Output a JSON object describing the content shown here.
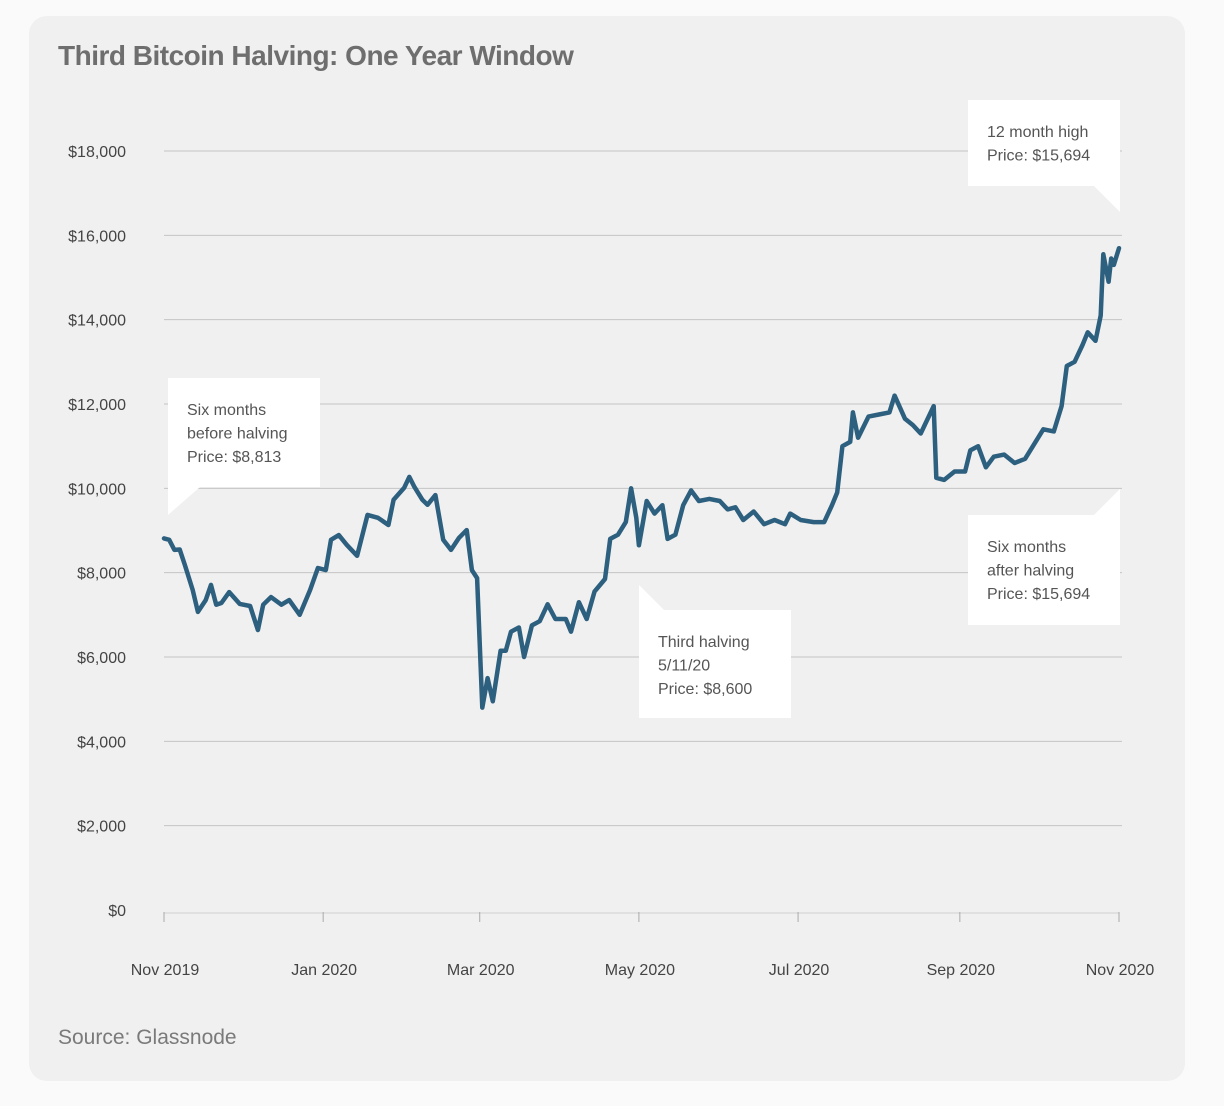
{
  "chart_data": {
    "type": "line",
    "title": "Third Bitcoin Halving: One Year Window",
    "source": "Source: Glassnode",
    "xlabel": "",
    "ylabel": "",
    "ylim": [
      0,
      18000
    ],
    "xlim": [
      "2019-11-01",
      "2020-11-01"
    ],
    "grid": true,
    "line_color": "#2d5f7f",
    "y_ticks": [
      {
        "value": 0,
        "label": "$0"
      },
      {
        "value": 2000,
        "label": "$2,000"
      },
      {
        "value": 4000,
        "label": "$4,000"
      },
      {
        "value": 6000,
        "label": "$6,000"
      },
      {
        "value": 8000,
        "label": "$8,000"
      },
      {
        "value": 10000,
        "label": "$10,000"
      },
      {
        "value": 12000,
        "label": "$12,000"
      },
      {
        "value": 14000,
        "label": "$14,000"
      },
      {
        "value": 16000,
        "label": "$16,000"
      },
      {
        "value": 18000,
        "label": "$18,000"
      }
    ],
    "x_ticks": [
      {
        "value": "2019-11-01",
        "label": "Nov 2019"
      },
      {
        "value": "2020-01-01",
        "label": "Jan 2020"
      },
      {
        "value": "2020-03-01",
        "label": "Mar 2020"
      },
      {
        "value": "2020-05-01",
        "label": "May 2020"
      },
      {
        "value": "2020-07-01",
        "label": "Jul 2020"
      },
      {
        "value": "2020-09-01",
        "label": "Sep 2020"
      },
      {
        "value": "2020-11-01",
        "label": "Nov 2020"
      }
    ],
    "series": [
      {
        "points": [
          [
            "2019-11-01",
            8813
          ],
          [
            "2019-11-03",
            8780
          ],
          [
            "2019-11-05",
            8540
          ],
          [
            "2019-11-07",
            8550
          ],
          [
            "2019-11-09",
            8180
          ],
          [
            "2019-11-12",
            7590
          ],
          [
            "2019-11-14",
            7070
          ],
          [
            "2019-11-17",
            7350
          ],
          [
            "2019-11-19",
            7710
          ],
          [
            "2019-11-21",
            7240
          ],
          [
            "2019-11-23",
            7280
          ],
          [
            "2019-11-26",
            7540
          ],
          [
            "2019-11-30",
            7260
          ],
          [
            "2019-12-04",
            7210
          ],
          [
            "2019-12-07",
            6640
          ],
          [
            "2019-12-09",
            7240
          ],
          [
            "2019-12-12",
            7420
          ],
          [
            "2019-12-16",
            7240
          ],
          [
            "2019-12-19",
            7350
          ],
          [
            "2019-12-23",
            7000
          ],
          [
            "2019-12-27",
            7590
          ],
          [
            "2019-12-30",
            8110
          ],
          [
            "2020-01-02",
            8060
          ],
          [
            "2020-01-04",
            8780
          ],
          [
            "2020-01-07",
            8890
          ],
          [
            "2020-01-10",
            8660
          ],
          [
            "2020-01-14",
            8400
          ],
          [
            "2020-01-18",
            9370
          ],
          [
            "2020-01-22",
            9300
          ],
          [
            "2020-01-26",
            9130
          ],
          [
            "2020-01-28",
            9730
          ],
          [
            "2020-02-01",
            10010
          ],
          [
            "2020-02-03",
            10270
          ],
          [
            "2020-02-05",
            10030
          ],
          [
            "2020-02-08",
            9730
          ],
          [
            "2020-02-10",
            9610
          ],
          [
            "2020-02-13",
            9840
          ],
          [
            "2020-02-16",
            8780
          ],
          [
            "2020-02-19",
            8540
          ],
          [
            "2020-02-22",
            8820
          ],
          [
            "2020-02-25",
            9010
          ],
          [
            "2020-02-27",
            8060
          ],
          [
            "2020-02-29",
            7870
          ],
          [
            "2020-03-02",
            4800
          ],
          [
            "2020-03-04",
            5500
          ],
          [
            "2020-03-06",
            4950
          ],
          [
            "2020-03-09",
            6150
          ],
          [
            "2020-03-11",
            6150
          ],
          [
            "2020-03-13",
            6600
          ],
          [
            "2020-03-16",
            6700
          ],
          [
            "2020-03-18",
            6000
          ],
          [
            "2020-03-21",
            6750
          ],
          [
            "2020-03-24",
            6850
          ],
          [
            "2020-03-27",
            7250
          ],
          [
            "2020-03-30",
            6900
          ],
          [
            "2020-04-03",
            6900
          ],
          [
            "2020-04-05",
            6600
          ],
          [
            "2020-04-08",
            7300
          ],
          [
            "2020-04-11",
            6900
          ],
          [
            "2020-04-14",
            7550
          ],
          [
            "2020-04-18",
            7850
          ],
          [
            "2020-04-20",
            8800
          ],
          [
            "2020-04-23",
            8900
          ],
          [
            "2020-04-26",
            9200
          ],
          [
            "2020-04-28",
            10000
          ],
          [
            "2020-04-30",
            9300
          ],
          [
            "2020-05-01",
            8650
          ],
          [
            "2020-05-04",
            9700
          ],
          [
            "2020-05-07",
            9400
          ],
          [
            "2020-05-10",
            9600
          ],
          [
            "2020-05-12",
            8800
          ],
          [
            "2020-05-15",
            8900
          ],
          [
            "2020-05-18",
            9600
          ],
          [
            "2020-05-21",
            9950
          ],
          [
            "2020-05-24",
            9700
          ],
          [
            "2020-05-28",
            9750
          ],
          [
            "2020-06-01",
            9700
          ],
          [
            "2020-06-04",
            9500
          ],
          [
            "2020-06-07",
            9550
          ],
          [
            "2020-06-10",
            9250
          ],
          [
            "2020-06-14",
            9450
          ],
          [
            "2020-06-18",
            9150
          ],
          [
            "2020-06-22",
            9250
          ],
          [
            "2020-06-26",
            9150
          ],
          [
            "2020-06-28",
            9400
          ],
          [
            "2020-07-02",
            9250
          ],
          [
            "2020-07-07",
            9200
          ],
          [
            "2020-07-11",
            9200
          ],
          [
            "2020-07-14",
            9600
          ],
          [
            "2020-07-16",
            9900
          ],
          [
            "2020-07-18",
            11000
          ],
          [
            "2020-07-21",
            11100
          ],
          [
            "2020-07-22",
            11800
          ],
          [
            "2020-07-24",
            11200
          ],
          [
            "2020-07-28",
            11700
          ],
          [
            "2020-08-01",
            11750
          ],
          [
            "2020-08-05",
            11800
          ],
          [
            "2020-08-07",
            12200
          ],
          [
            "2020-08-11",
            11650
          ],
          [
            "2020-08-14",
            11500
          ],
          [
            "2020-08-17",
            11300
          ],
          [
            "2020-08-22",
            11950
          ],
          [
            "2020-08-23",
            10250
          ],
          [
            "2020-08-26",
            10200
          ],
          [
            "2020-08-30",
            10400
          ],
          [
            "2020-09-03",
            10400
          ],
          [
            "2020-09-05",
            10900
          ],
          [
            "2020-09-08",
            11000
          ],
          [
            "2020-09-11",
            10500
          ],
          [
            "2020-09-14",
            10750
          ],
          [
            "2020-09-18",
            10800
          ],
          [
            "2020-09-22",
            10600
          ],
          [
            "2020-09-26",
            10700
          ],
          [
            "2020-09-29",
            11000
          ],
          [
            "2020-10-03",
            11400
          ],
          [
            "2020-10-07",
            11350
          ],
          [
            "2020-10-10",
            11950
          ],
          [
            "2020-10-12",
            12900
          ],
          [
            "2020-10-15",
            13000
          ],
          [
            "2020-10-18",
            13400
          ],
          [
            "2020-10-20",
            13700
          ],
          [
            "2020-10-23",
            13500
          ],
          [
            "2020-10-25",
            14100
          ],
          [
            "2020-10-26",
            15550
          ],
          [
            "2020-10-28",
            14900
          ],
          [
            "2020-10-29",
            15450
          ],
          [
            "2020-10-30",
            15300
          ],
          [
            "2020-11-01",
            15694
          ]
        ]
      }
    ],
    "annotations": [
      {
        "lines": [
          "Six months",
          "before halving",
          "Price: $8,813"
        ]
      },
      {
        "lines": [
          "Third halving",
          "5/11/20",
          "Price: $8,600"
        ]
      },
      {
        "lines": [
          "12 month high",
          "Price: $15,694"
        ]
      },
      {
        "lines": [
          "Six months",
          "after halving",
          "Price: $15,694"
        ]
      }
    ]
  }
}
